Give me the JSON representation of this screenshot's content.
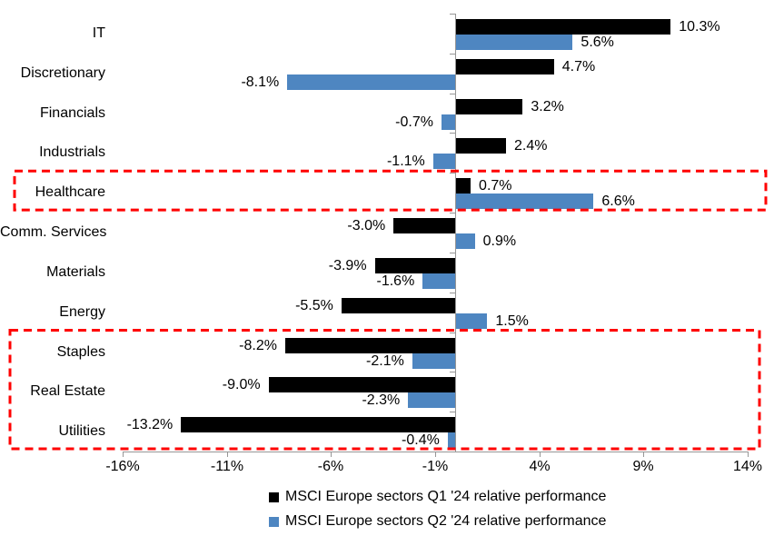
{
  "chart_data": {
    "type": "bar",
    "orientation": "horizontal",
    "categories": [
      "IT",
      "Discretionary",
      "Financials",
      "Industrials",
      "Healthcare",
      "Comm. Services",
      "Materials",
      "Energy",
      "Staples",
      "Real Estate",
      "Utilities"
    ],
    "series": [
      {
        "name": "MSCI Europe sectors Q1 '24 relative performance",
        "color": "#000000",
        "values": [
          10.3,
          4.7,
          3.2,
          2.4,
          0.7,
          -3.0,
          -3.9,
          -5.5,
          -8.2,
          -9.0,
          -13.2
        ]
      },
      {
        "name": "MSCI Europe sectors Q2 '24 relative performance",
        "color": "#4E86C1",
        "values": [
          5.6,
          -8.1,
          -0.7,
          -1.1,
          6.6,
          0.9,
          -1.6,
          1.5,
          -2.1,
          -2.3,
          -0.4
        ]
      }
    ],
    "value_labels": [
      [
        "10.3%",
        "4.7%",
        "3.2%",
        "2.4%",
        "0.7%",
        "-3.0%",
        "-3.9%",
        "-5.5%",
        "-8.2%",
        "-9.0%",
        "-13.2%"
      ],
      [
        "5.6%",
        "-8.1%",
        "-0.7%",
        "-1.1%",
        "6.6%",
        "0.9%",
        "-1.6%",
        "1.5%",
        "-2.1%",
        "-2.3%",
        "-0.4%"
      ]
    ],
    "x_ticks": [
      "-16%",
      "-11%",
      "-6%",
      "-1%",
      "4%",
      "9%",
      "14%"
    ],
    "x_tick_values": [
      -16,
      -11,
      -6,
      -1,
      4,
      9,
      14
    ],
    "xlim": [
      -16,
      14
    ],
    "grid": "off",
    "legend_position": "bottom",
    "highlight_color": "#FF0000",
    "highlight_boxes": [
      {
        "sectors": [
          "Healthcare"
        ]
      },
      {
        "sectors": [
          "Staples",
          "Real Estate",
          "Utilities"
        ]
      }
    ]
  }
}
